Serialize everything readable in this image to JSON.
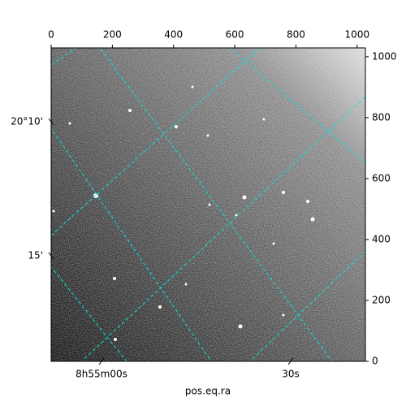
{
  "chart_data": {
    "type": "image",
    "xlabel": "pos.eq.ra",
    "xlim": [
      0,
      1027
    ],
    "ylim": [
      0,
      1029
    ],
    "xticks": [
      0,
      200,
      400,
      600,
      800,
      1000
    ],
    "yticks": [
      0,
      200,
      400,
      600,
      800,
      1000
    ],
    "ra_tick_labels": [
      "8h55m00s",
      "30s"
    ],
    "dec_tick_labels": [
      "20°10'",
      "15'"
    ],
    "grid_color": "#00e5e5"
  }
}
